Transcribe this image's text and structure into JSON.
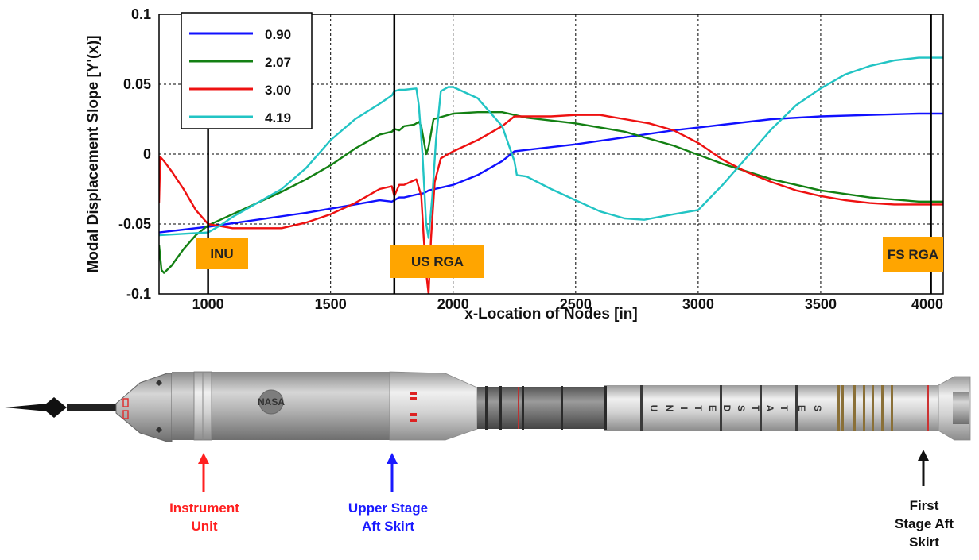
{
  "chart_data": {
    "type": "line",
    "title": "",
    "xlabel": "x-Location of Nodes [in]",
    "ylabel": "Modal Displacement Slope [Y'(x)]",
    "xlim": [
      800,
      4000
    ],
    "ylim": [
      -0.1,
      0.1
    ],
    "xticks": [
      1000,
      1500,
      2000,
      2500,
      3000,
      3500,
      4000
    ],
    "yticks": [
      0.1,
      0.05,
      0,
      -0.05,
      -0.1
    ],
    "ytick_labels": [
      "0.1",
      "0.05",
      "0",
      "-0.05",
      "-0.1"
    ],
    "grid": true,
    "legend_position": "top-left",
    "series": [
      {
        "name": "0.90",
        "color": "#1010ff",
        "points": [
          [
            800,
            -0.056
          ],
          [
            1000,
            -0.052
          ],
          [
            1200,
            -0.047
          ],
          [
            1400,
            -0.042
          ],
          [
            1600,
            -0.036
          ],
          [
            1700,
            -0.033
          ],
          [
            1750,
            -0.034
          ],
          [
            1760,
            -0.033
          ],
          [
            1780,
            -0.031
          ],
          [
            1800,
            -0.031
          ],
          [
            1850,
            -0.029
          ],
          [
            1880,
            -0.028
          ],
          [
            1900,
            -0.026
          ],
          [
            2000,
            -0.022
          ],
          [
            2100,
            -0.015
          ],
          [
            2200,
            -0.005
          ],
          [
            2250,
            0.002
          ],
          [
            2300,
            0.003
          ],
          [
            2500,
            0.007
          ],
          [
            2700,
            0.012
          ],
          [
            2900,
            0.017
          ],
          [
            3100,
            0.021
          ],
          [
            3300,
            0.025
          ],
          [
            3500,
            0.027
          ],
          [
            3700,
            0.028
          ],
          [
            3900,
            0.029
          ],
          [
            4000,
            0.029
          ]
        ]
      },
      {
        "name": "2.07",
        "color": "#138013",
        "points": [
          [
            800,
            -0.065
          ],
          [
            810,
            -0.083
          ],
          [
            820,
            -0.085
          ],
          [
            850,
            -0.08
          ],
          [
            900,
            -0.068
          ],
          [
            950,
            -0.058
          ],
          [
            1000,
            -0.051
          ],
          [
            1100,
            -0.043
          ],
          [
            1200,
            -0.035
          ],
          [
            1300,
            -0.027
          ],
          [
            1400,
            -0.018
          ],
          [
            1500,
            -0.008
          ],
          [
            1600,
            0.004
          ],
          [
            1700,
            0.014
          ],
          [
            1750,
            0.016
          ],
          [
            1760,
            0.018
          ],
          [
            1780,
            0.017
          ],
          [
            1800,
            0.02
          ],
          [
            1840,
            0.021
          ],
          [
            1860,
            0.023
          ],
          [
            1870,
            0.02
          ],
          [
            1880,
            0.01
          ],
          [
            1890,
            0.0
          ],
          [
            1900,
            0.005
          ],
          [
            1920,
            0.025
          ],
          [
            1960,
            0.027
          ],
          [
            2000,
            0.029
          ],
          [
            2100,
            0.03
          ],
          [
            2200,
            0.03
          ],
          [
            2300,
            0.026
          ],
          [
            2500,
            0.022
          ],
          [
            2700,
            0.016
          ],
          [
            2900,
            0.006
          ],
          [
            3100,
            -0.007
          ],
          [
            3300,
            -0.018
          ],
          [
            3500,
            -0.026
          ],
          [
            3700,
            -0.031
          ],
          [
            3900,
            -0.034
          ],
          [
            4000,
            -0.034
          ]
        ]
      },
      {
        "name": "3.00",
        "color": "#ee1111",
        "points": [
          [
            800,
            -0.035
          ],
          [
            805,
            -0.002
          ],
          [
            820,
            -0.005
          ],
          [
            850,
            -0.012
          ],
          [
            900,
            -0.025
          ],
          [
            950,
            -0.04
          ],
          [
            1000,
            -0.05
          ],
          [
            1100,
            -0.053
          ],
          [
            1200,
            -0.053
          ],
          [
            1300,
            -0.053
          ],
          [
            1400,
            -0.049
          ],
          [
            1500,
            -0.043
          ],
          [
            1600,
            -0.035
          ],
          [
            1700,
            -0.025
          ],
          [
            1750,
            -0.023
          ],
          [
            1760,
            -0.03
          ],
          [
            1780,
            -0.022
          ],
          [
            1800,
            -0.022
          ],
          [
            1850,
            -0.018
          ],
          [
            1870,
            -0.03
          ],
          [
            1880,
            -0.06
          ],
          [
            1890,
            -0.085
          ],
          [
            1900,
            -0.1
          ],
          [
            1910,
            -0.06
          ],
          [
            1925,
            -0.02
          ],
          [
            1950,
            -0.003
          ],
          [
            2000,
            0.002
          ],
          [
            2100,
            0.01
          ],
          [
            2200,
            0.02
          ],
          [
            2250,
            0.027
          ],
          [
            2300,
            0.027
          ],
          [
            2400,
            0.027
          ],
          [
            2500,
            0.028
          ],
          [
            2600,
            0.028
          ],
          [
            2700,
            0.025
          ],
          [
            2800,
            0.022
          ],
          [
            2900,
            0.017
          ],
          [
            3000,
            0.008
          ],
          [
            3100,
            -0.004
          ],
          [
            3200,
            -0.013
          ],
          [
            3300,
            -0.02
          ],
          [
            3400,
            -0.026
          ],
          [
            3500,
            -0.03
          ],
          [
            3600,
            -0.033
          ],
          [
            3700,
            -0.035
          ],
          [
            3800,
            -0.036
          ],
          [
            4000,
            -0.036
          ]
        ]
      },
      {
        "name": "4.19",
        "color": "#22c4c4",
        "points": [
          [
            800,
            -0.058
          ],
          [
            900,
            -0.057
          ],
          [
            1000,
            -0.056
          ],
          [
            1050,
            -0.051
          ],
          [
            1100,
            -0.045
          ],
          [
            1200,
            -0.035
          ],
          [
            1300,
            -0.025
          ],
          [
            1400,
            -0.01
          ],
          [
            1500,
            0.01
          ],
          [
            1600,
            0.025
          ],
          [
            1700,
            0.036
          ],
          [
            1750,
            0.042
          ],
          [
            1760,
            0.045
          ],
          [
            1780,
            0.046
          ],
          [
            1800,
            0.046
          ],
          [
            1850,
            0.047
          ],
          [
            1860,
            0.035
          ],
          [
            1875,
            0.0
          ],
          [
            1890,
            -0.05
          ],
          [
            1900,
            -0.06
          ],
          [
            1915,
            -0.03
          ],
          [
            1930,
            0.01
          ],
          [
            1950,
            0.045
          ],
          [
            1980,
            0.048
          ],
          [
            2000,
            0.048
          ],
          [
            2100,
            0.04
          ],
          [
            2200,
            0.02
          ],
          [
            2250,
            -0.005
          ],
          [
            2260,
            -0.015
          ],
          [
            2300,
            -0.016
          ],
          [
            2400,
            -0.025
          ],
          [
            2500,
            -0.033
          ],
          [
            2600,
            -0.041
          ],
          [
            2700,
            -0.046
          ],
          [
            2780,
            -0.047
          ],
          [
            2900,
            -0.043
          ],
          [
            3000,
            -0.04
          ],
          [
            3100,
            -0.022
          ],
          [
            3200,
            -0.002
          ],
          [
            3300,
            0.018
          ],
          [
            3400,
            0.035
          ],
          [
            3500,
            0.047
          ],
          [
            3600,
            0.057
          ],
          [
            3700,
            0.063
          ],
          [
            3800,
            0.067
          ],
          [
            3900,
            0.069
          ],
          [
            4000,
            0.069
          ]
        ]
      }
    ],
    "vertical_markers": [
      {
        "x": 1000,
        "label": "INU",
        "box_color": "#ffa500"
      },
      {
        "x": 1760,
        "label": "US RGA",
        "box_color": "#ffa500"
      },
      {
        "x": 3950,
        "label": "FS RGA",
        "box_color": "#ffa500"
      }
    ]
  },
  "rocket": {
    "lettering": [
      "U",
      "N",
      "I",
      "T",
      "E",
      "D",
      "S",
      "T",
      "A",
      "T",
      "E",
      "S"
    ]
  },
  "callouts": [
    {
      "id": "instrument-unit",
      "lines": [
        "Instrument",
        "Unit"
      ],
      "color": "#ff2020"
    },
    {
      "id": "upper-stage-aft-skirt",
      "lines": [
        "Upper Stage",
        "Aft Skirt"
      ],
      "color": "#1a1aff"
    },
    {
      "id": "first-stage-aft-skirt",
      "lines": [
        "First",
        "Stage Aft",
        "Skirt"
      ],
      "color": "#111111"
    }
  ]
}
